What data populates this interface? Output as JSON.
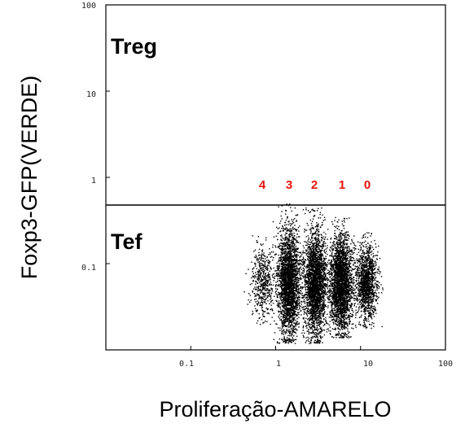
{
  "chart_data": {
    "type": "scatter",
    "x_scale": "log",
    "y_scale": "log",
    "xlabel": "Proliferação-AMARELO",
    "ylabel": "Foxp3-GFP(VERDE)",
    "xlim": [
      0.01,
      100
    ],
    "ylim": [
      0.01,
      100
    ],
    "x_ticks": [
      "0.1",
      "1",
      "10",
      "100"
    ],
    "y_ticks": [
      "100",
      "10",
      "1",
      "0.1"
    ],
    "gate_threshold_y": 0.5,
    "gate_labels": [
      "Treg",
      "Tef"
    ],
    "division_labels": [
      "4",
      "3",
      "2",
      "1",
      "0"
    ],
    "division_label_color": "#e8120c",
    "point_color": "#000000",
    "clusters": [
      {
        "division": "4",
        "x_center": 0.7,
        "y_center": 0.06,
        "y_range": [
          0.02,
          0.25
        ],
        "relative_density": "low"
      },
      {
        "division": "3",
        "x_center": 1.4,
        "y_center": 0.06,
        "y_range": [
          0.012,
          0.5
        ],
        "relative_density": "high"
      },
      {
        "division": "2",
        "x_center": 2.9,
        "y_center": 0.06,
        "y_range": [
          0.012,
          0.45
        ],
        "relative_density": "high"
      },
      {
        "division": "1",
        "x_center": 5.8,
        "y_center": 0.06,
        "y_range": [
          0.014,
          0.35
        ],
        "relative_density": "high"
      },
      {
        "division": "0",
        "x_center": 11.5,
        "y_center": 0.06,
        "y_range": [
          0.018,
          0.25
        ],
        "relative_density": "medium"
      }
    ]
  }
}
